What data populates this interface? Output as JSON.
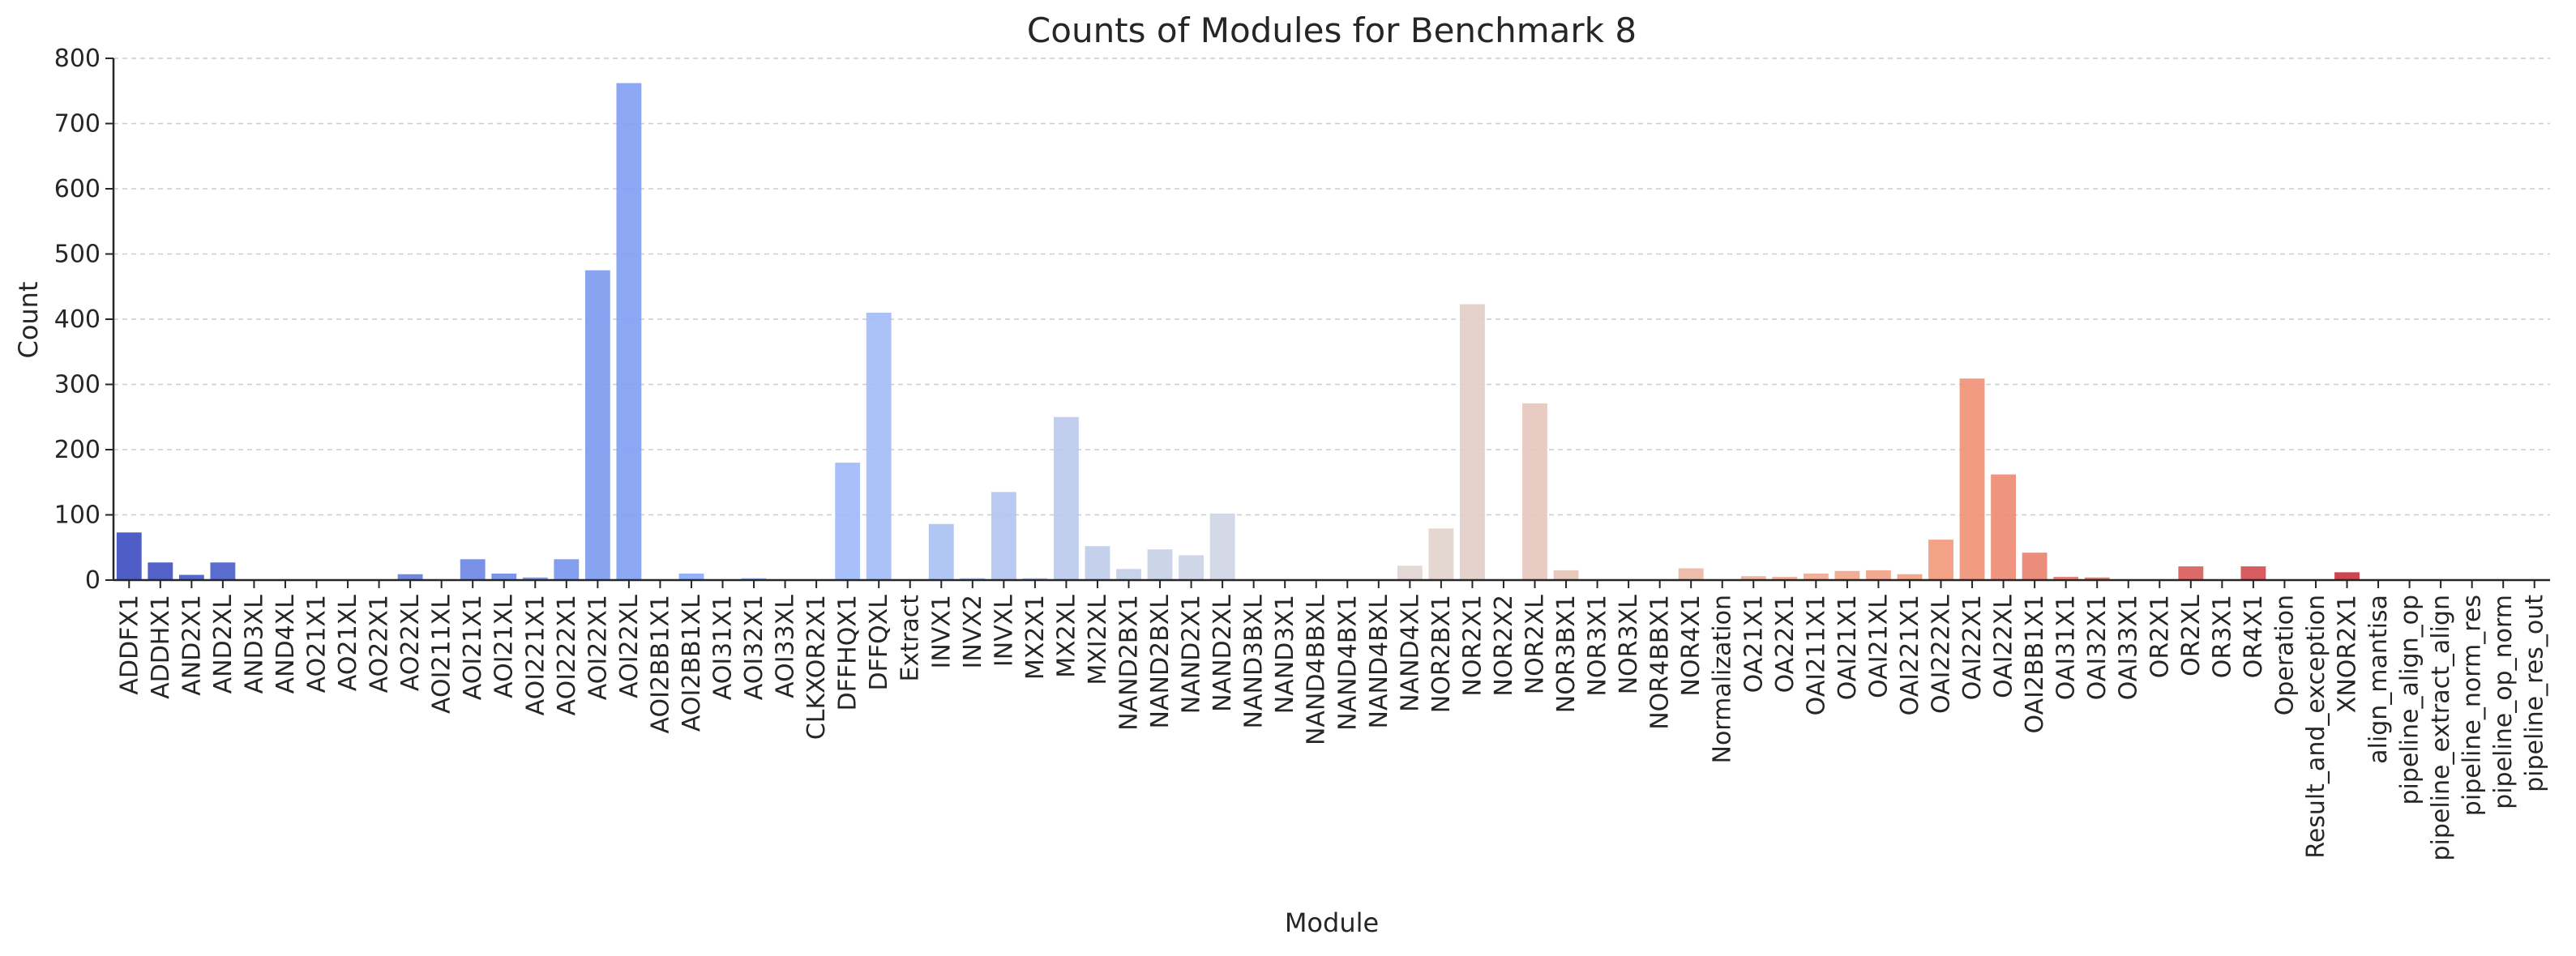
{
  "chart_data": {
    "type": "bar",
    "title": "Counts of Modules for Benchmark 8",
    "xlabel": "Module",
    "ylabel": "Count",
    "ylim": [
      0,
      800
    ],
    "yticks": [
      0,
      100,
      200,
      300,
      400,
      500,
      600,
      700,
      800
    ],
    "grid": true,
    "palette": "coolwarm",
    "categories": [
      "ADDFX1",
      "ADDHX1",
      "AND2X1",
      "AND2XL",
      "AND3XL",
      "AND4XL",
      "AO21X1",
      "AO21XL",
      "AO22X1",
      "AO22XL",
      "AOI211XL",
      "AOI21X1",
      "AOI21XL",
      "AOI221X1",
      "AOI222X1",
      "AOI22X1",
      "AOI22XL",
      "AOI2BB1X1",
      "AOI2BB1XL",
      "AOI31X1",
      "AOI32X1",
      "AOI33XL",
      "CLKXOR2X1",
      "DFFHQX1",
      "DFFQXL",
      "Extract",
      "INVX1",
      "INVX2",
      "INVXL",
      "MX2X1",
      "MX2XL",
      "MXI2XL",
      "NAND2BX1",
      "NAND2BXL",
      "NAND2X1",
      "NAND2XL",
      "NAND3BXL",
      "NAND3X1",
      "NAND4BBXL",
      "NAND4BX1",
      "NAND4BXL",
      "NAND4XL",
      "NOR2BX1",
      "NOR2X1",
      "NOR2X2",
      "NOR2XL",
      "NOR3BX1",
      "NOR3X1",
      "NOR3XL",
      "NOR4BBX1",
      "NOR4X1",
      "Normalization",
      "OA21X1",
      "OA22X1",
      "OAI211X1",
      "OAI21X1",
      "OAI21XL",
      "OAI221X1",
      "OAI222XL",
      "OAI22X1",
      "OAI22XL",
      "OAI2BB1X1",
      "OAI31X1",
      "OAI32X1",
      "OAI33X1",
      "OR2X1",
      "OR2XL",
      "OR3X1",
      "OR4X1",
      "Operation",
      "Result_and_exception",
      "XNOR2X1",
      "align_mantisa",
      "pipeline_align_op",
      "pipeline_extract_align",
      "pipeline_norm_res",
      "pipeline_op_norm",
      "pipeline_res_out"
    ],
    "values": [
      73,
      27,
      8,
      27,
      1,
      1,
      1,
      1,
      1,
      9,
      1,
      32,
      10,
      4,
      32,
      475,
      762,
      1,
      10,
      1,
      3,
      1,
      1,
      180,
      410,
      1,
      86,
      3,
      135,
      3,
      250,
      52,
      17,
      47,
      38,
      102,
      1,
      1,
      1,
      1,
      1,
      22,
      79,
      423,
      1,
      271,
      15,
      1,
      1,
      1,
      18,
      1,
      6,
      5,
      10,
      14,
      15,
      9,
      62,
      309,
      162,
      42,
      5,
      4,
      1,
      1,
      21,
      1,
      21,
      1,
      1,
      12,
      1,
      1,
      1,
      1,
      1,
      1
    ]
  }
}
